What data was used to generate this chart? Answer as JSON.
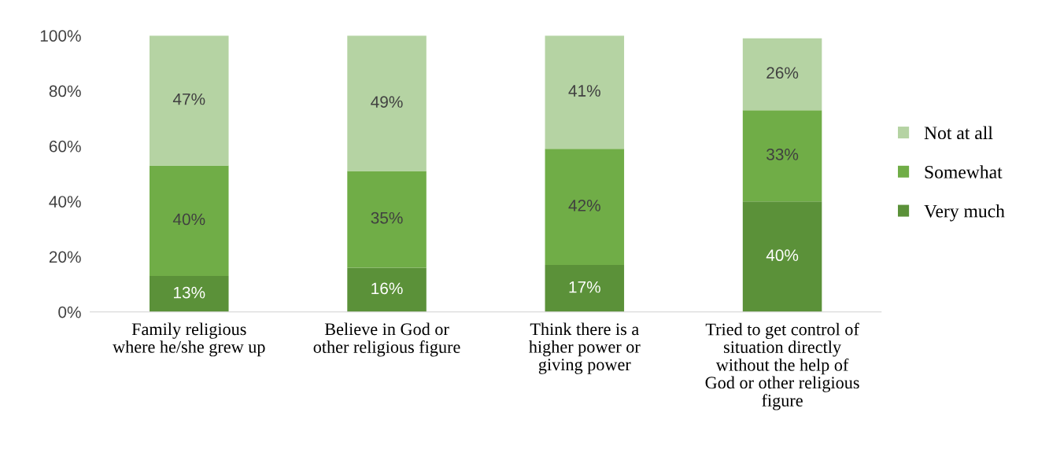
{
  "chart_data": {
    "type": "bar",
    "stacked": true,
    "legend": "right",
    "grid": false,
    "categories": [
      "Family religious\nwhere he/she grew up",
      "Believe in God or\nother religious figure",
      "Think there is a\nhigher power or\ngiving power",
      "Tried to get control of\nsituation directly\nwithout the help of\nGod or other religious\nfigure"
    ],
    "series": [
      {
        "name": "Very much",
        "color": "#5b9139",
        "values": [
          13,
          16,
          17,
          40
        ],
        "value_labels": [
          "13%",
          "16%",
          "17%",
          "40%"
        ]
      },
      {
        "name": "Somewhat",
        "color": "#70ad47",
        "values": [
          40,
          35,
          42,
          33
        ],
        "value_labels": [
          "40%",
          "35%",
          "42%",
          "33%"
        ]
      },
      {
        "name": "Not at all",
        "color": "#b5d3a3",
        "values": [
          47,
          49,
          41,
          26
        ],
        "value_labels": [
          "47%",
          "49%",
          "41%",
          "26%"
        ]
      }
    ],
    "ylim": [
      0,
      100
    ],
    "yticks": [
      {
        "value": 0,
        "label": "0%"
      },
      {
        "value": 20,
        "label": "20%"
      },
      {
        "value": 40,
        "label": "40%"
      },
      {
        "value": 60,
        "label": "60%"
      },
      {
        "value": 80,
        "label": "80%"
      },
      {
        "value": 100,
        "label": "100%"
      }
    ]
  }
}
